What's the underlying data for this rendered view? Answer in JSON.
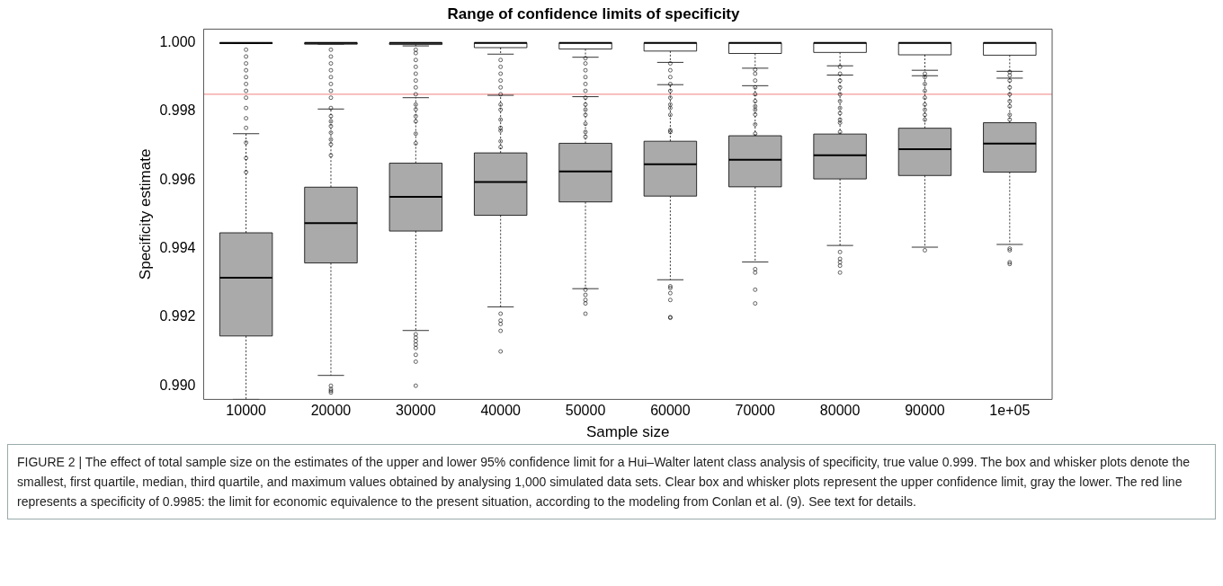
{
  "chart_data": {
    "type": "box",
    "title": "Range of confidence limits of specificity",
    "xlabel": "Sample size",
    "ylabel": "Specificity estimate",
    "categories": [
      "10000",
      "20000",
      "30000",
      "40000",
      "50000",
      "60000",
      "70000",
      "80000",
      "90000",
      "1e+05"
    ],
    "ylim": [
      0.9896,
      1.0004
    ],
    "yticks": [
      {
        "value": 0.99,
        "label": "0.990"
      },
      {
        "value": 0.992,
        "label": "0.992"
      },
      {
        "value": 0.994,
        "label": "0.994"
      },
      {
        "value": 0.996,
        "label": "0.996"
      },
      {
        "value": 0.998,
        "label": "0.998"
      },
      {
        "value": 1,
        "label": "1.000"
      }
    ],
    "ref_lines": [
      {
        "axis": "y",
        "value": 0.9985,
        "color": "#f08080"
      }
    ],
    "series": [
      {
        "color": "#aaaaaa",
        "boxes": [
          {
            "low": 0.9896,
            "q1": 0.99145,
            "median": 0.99315,
            "q3": 0.99446,
            "high": 0.99735
          },
          {
            "low": 0.9903,
            "q1": 0.99358,
            "median": 0.99474,
            "q3": 0.99579,
            "high": 0.99807,
            "outliers": [
              0.99,
              0.9899,
              0.98985,
              0.9898
            ]
          },
          {
            "low": 0.99161,
            "q1": 0.99451,
            "median": 0.99551,
            "q3": 0.99649,
            "high": 0.9984,
            "outliers": [
              0.9915,
              0.9914,
              0.9913,
              0.9912,
              0.9911,
              0.9909,
              0.9907,
              0.99
            ]
          },
          {
            "low": 0.9923,
            "q1": 0.99497,
            "median": 0.99594,
            "q3": 0.99679,
            "high": 0.99847,
            "outliers": [
              0.9921,
              0.9919,
              0.9918,
              0.9916,
              0.991
            ]
          },
          {
            "low": 0.99283,
            "q1": 0.99536,
            "median": 0.99625,
            "q3": 0.99707,
            "high": 0.99843,
            "outliers": [
              0.9928,
              0.99265,
              0.9925,
              0.9924,
              0.9921
            ]
          },
          {
            "low": 0.99309,
            "q1": 0.99553,
            "median": 0.99646,
            "q3": 0.99713,
            "high": 0.99878,
            "outliers": [
              0.9929,
              0.99285,
              0.9927,
              0.9925,
              0.992,
              0.99198
            ]
          },
          {
            "low": 0.99361,
            "q1": 0.9958,
            "median": 0.99659,
            "q3": 0.99729,
            "high": 0.99875,
            "outliers": [
              0.9934,
              0.9933,
              0.9928,
              0.9924
            ]
          },
          {
            "low": 0.99409,
            "q1": 0.99603,
            "median": 0.99672,
            "q3": 0.99734,
            "high": 0.99906,
            "outliers": [
              0.9939,
              0.9937,
              0.9936,
              0.9935,
              0.9933
            ]
          },
          {
            "low": 0.99404,
            "q1": 0.99613,
            "median": 0.9969,
            "q3": 0.99751,
            "high": 0.99904,
            "outliers": [
              0.99395
            ]
          },
          {
            "low": 0.99412,
            "q1": 0.99623,
            "median": 0.99706,
            "q3": 0.99767,
            "high": 0.99897,
            "outliers": [
              0.994,
              0.99395,
              0.9936,
              0.99355
            ]
          }
        ]
      },
      {
        "color": "#ffffff",
        "boxes": [
          {
            "low": 0.99998,
            "q1": 0.99998,
            "median": 1,
            "q3": 1,
            "high": 1,
            "outliers": [
              0.99623,
              0.99664,
              0.99709,
              0.99752,
              0.9978,
              0.9981,
              0.9984,
              0.9986,
              0.9988,
              0.999,
              0.9992,
              0.9994,
              0.9996,
              0.9998
            ]
          },
          {
            "low": 0.99996,
            "q1": 0.99996,
            "median": 1,
            "q3": 1,
            "high": 1,
            "outliers": [
              0.99672,
              0.99704,
              0.99718,
              0.99738,
              0.99757,
              0.99771,
              0.99786,
              0.9981,
              0.9984,
              0.9986,
              0.9988,
              0.999,
              0.9992,
              0.9994,
              0.9996,
              0.9998
            ]
          },
          {
            "low": 0.99991,
            "q1": 0.99995,
            "median": 1,
            "q3": 1,
            "high": 1,
            "outliers": [
              0.99707,
              0.99735,
              0.99771,
              0.99786,
              0.99806,
              0.9982,
              0.9985,
              0.9987,
              0.9989,
              0.9991,
              0.9993,
              0.9995,
              0.9997,
              0.9998
            ]
          },
          {
            "low": 0.99967,
            "q1": 0.99986,
            "median": 1,
            "q3": 1,
            "high": 1,
            "outliers": [
              0.99696,
              0.99713,
              0.99744,
              0.99752,
              0.99776,
              0.99805,
              0.9982,
              0.9985,
              0.9987,
              0.9989,
              0.9991,
              0.9993,
              0.9995
            ]
          },
          {
            "low": 0.99958,
            "q1": 0.99982,
            "median": 1,
            "q3": 1,
            "high": 1,
            "outliers": [
              0.99726,
              0.9974,
              0.99764,
              0.9979,
              0.99805,
              0.9982,
              0.9984,
              0.9986,
              0.9988,
              0.999,
              0.9992,
              0.9994,
              0.99955
            ]
          },
          {
            "low": 0.99943,
            "q1": 0.99976,
            "median": 1,
            "q3": 1,
            "high": 1,
            "outliers": [
              0.9974,
              0.99745,
              0.9979,
              0.9981,
              0.9982,
              0.9984,
              0.9986,
              0.9988,
              0.999,
              0.9992,
              0.9994
            ]
          },
          {
            "low": 0.99926,
            "q1": 0.99969,
            "median": 1,
            "q3": 1,
            "high": 1,
            "outliers": [
              0.99735,
              0.99762,
              0.99791,
              0.99805,
              0.99815,
              0.9983,
              0.9985,
              0.9987,
              0.9989,
              0.9991,
              0.99922
            ]
          },
          {
            "low": 0.99933,
            "q1": 0.99972,
            "median": 1,
            "q3": 1,
            "high": 1,
            "outliers": [
              0.9974,
              0.99767,
              0.99776,
              0.99795,
              0.9981,
              0.9983,
              0.9985,
              0.9987,
              0.9989,
              0.9991,
              0.9993
            ]
          },
          {
            "low": 0.9992,
            "q1": 0.99965,
            "median": 1,
            "q3": 1,
            "high": 1,
            "outliers": [
              0.99776,
              0.9979,
              0.99805,
              0.9982,
              0.9984,
              0.9986,
              0.9988,
              0.999,
              0.9991
            ]
          },
          {
            "low": 0.99917,
            "q1": 0.99964,
            "median": 1,
            "q3": 1,
            "high": 1,
            "outliers": [
              0.99776,
              0.9979,
              0.99815,
              0.9983,
              0.9985,
              0.9987,
              0.9989,
              0.99905,
              0.99915
            ]
          }
        ]
      }
    ],
    "annotations": [
      "FIGURE 2 | The effect of total sample size on the estimates of the upper and lower 95% confidence limit for a Hui–Walter latent class analysis of specificity, true value 0.999. The box and whisker plots denote the smallest, first quartile, median, third quartile, and maximum values obtained by analysing 1,000 simulated data sets. Clear box and whisker plots represent the upper confidence limit, gray the lower. The red line represents a specificity of 0.9985: the limit for economic equivalence to the present situation, according to the modeling from Conlan et al. (9). See text for details."
    ]
  }
}
